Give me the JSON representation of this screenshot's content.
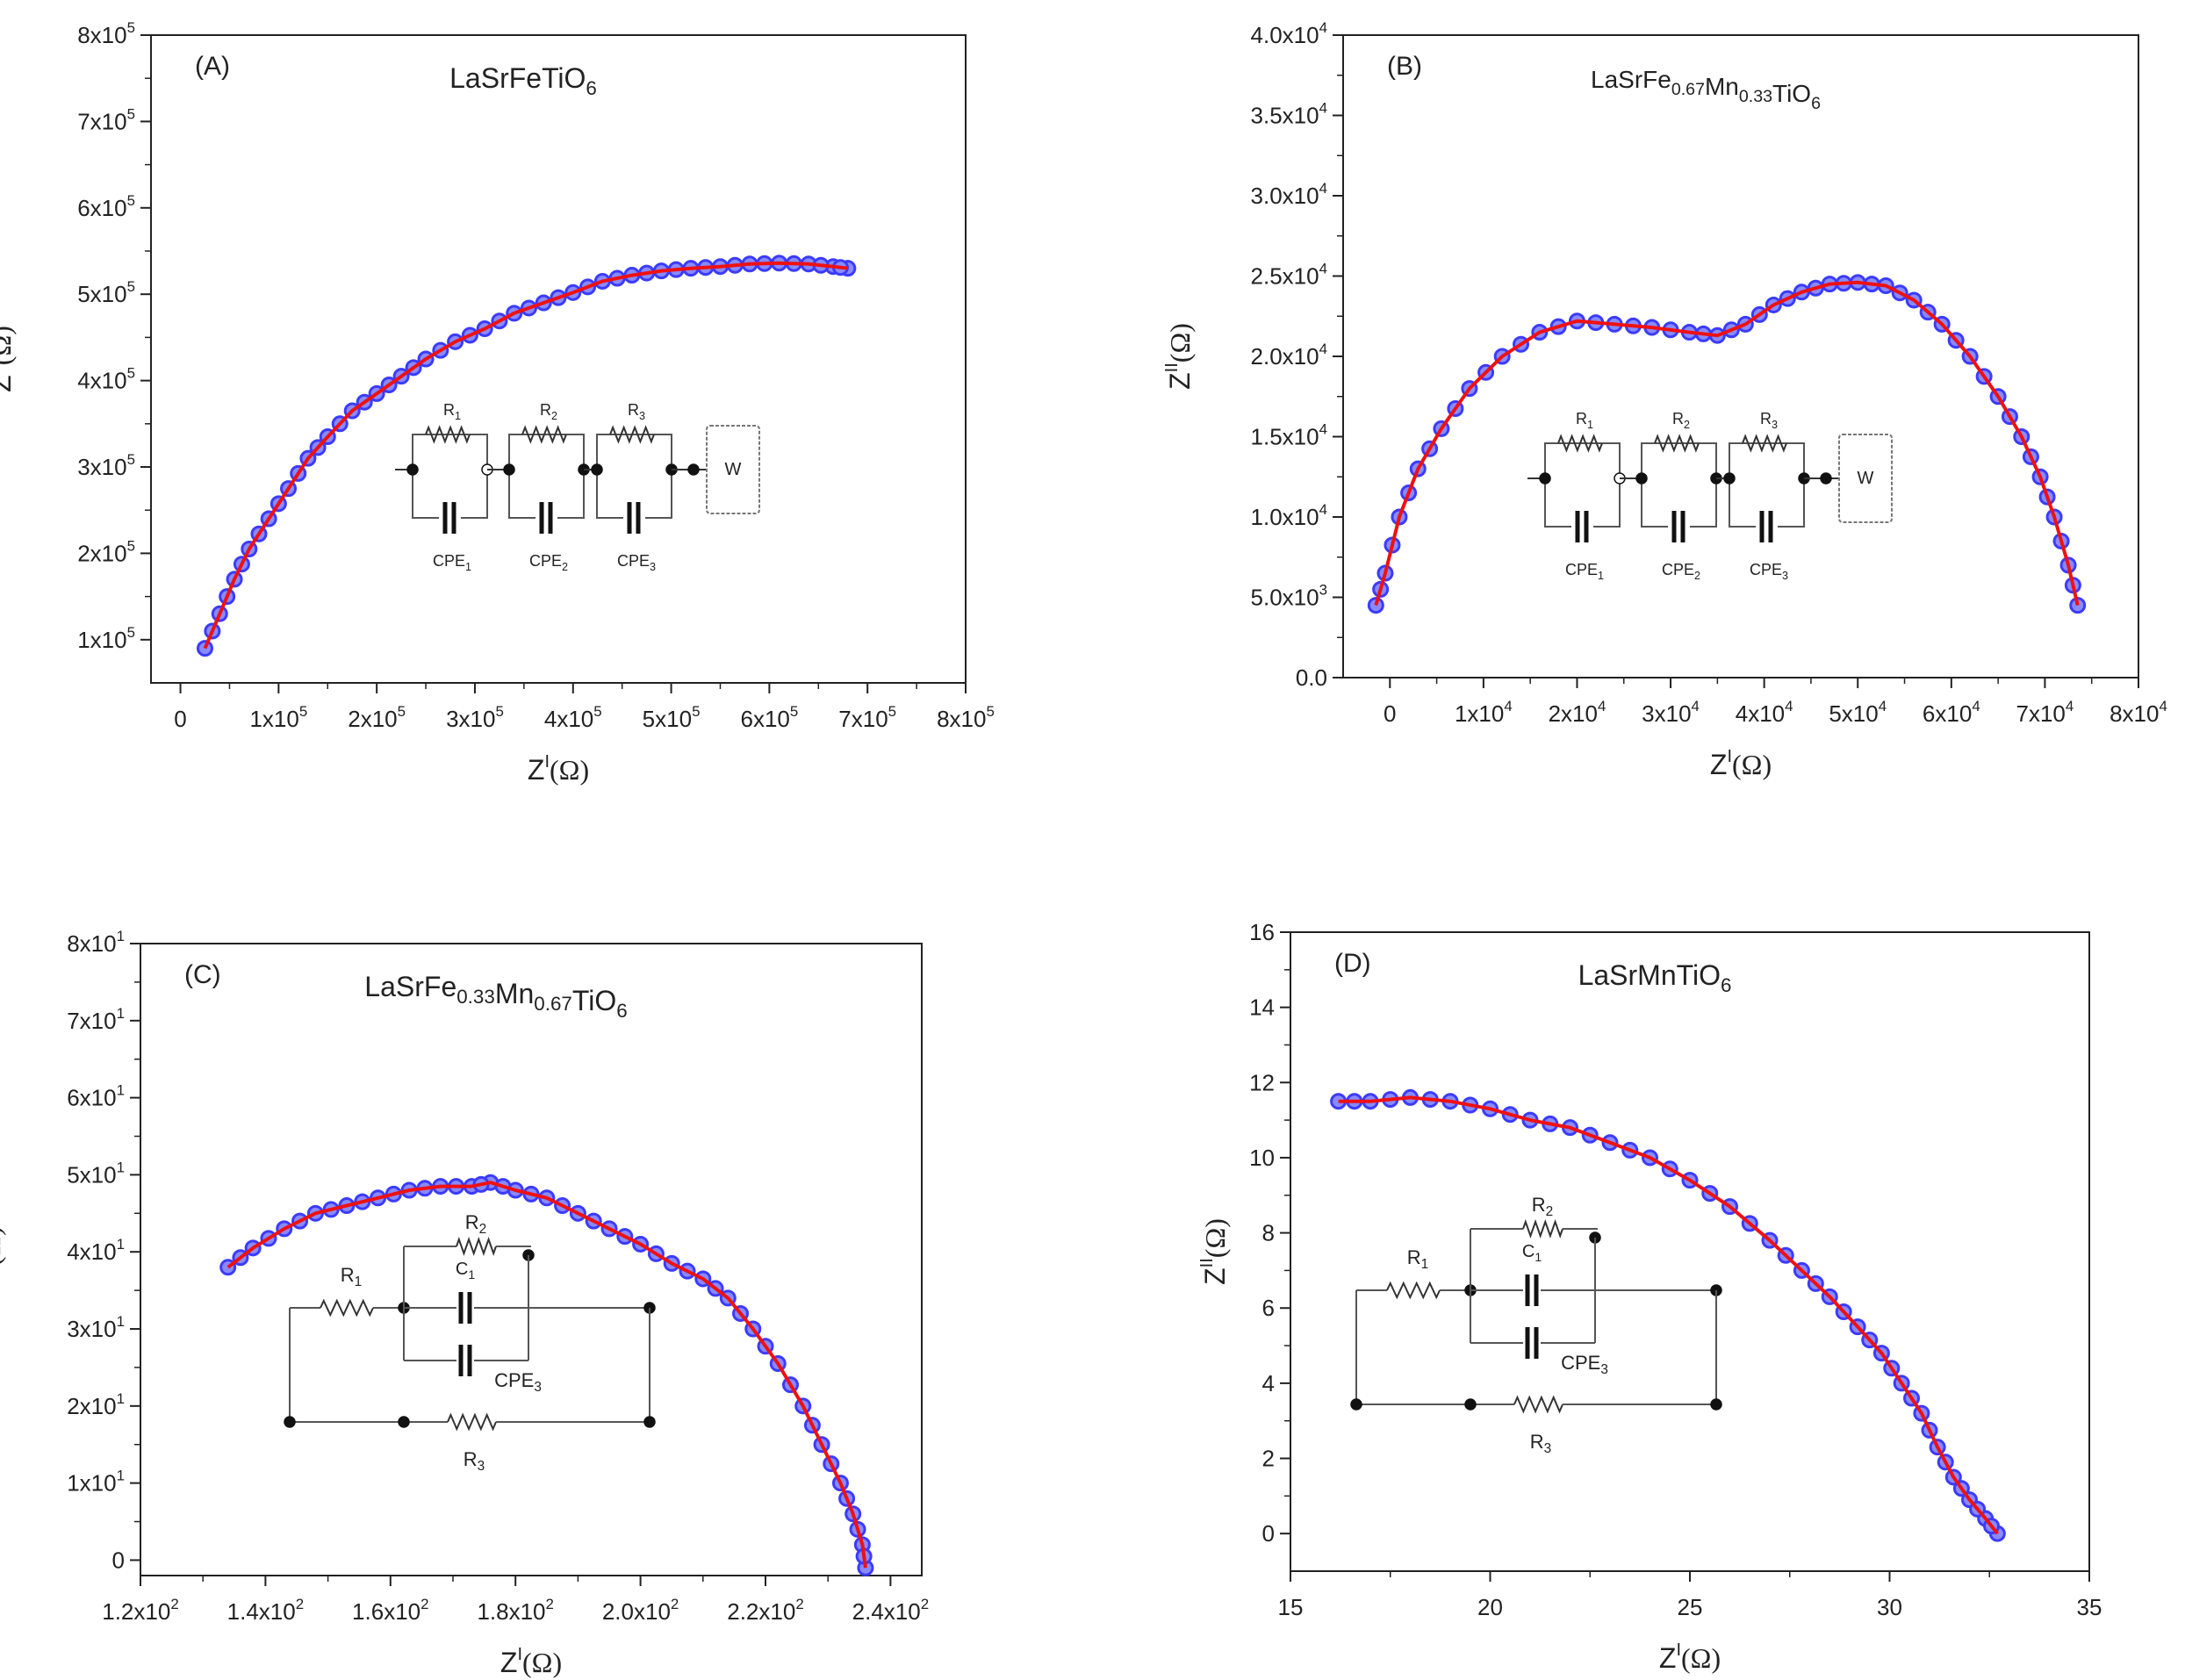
{
  "chart_data": [
    {
      "type": "line",
      "panel_label": "(A)",
      "title": "LaSrFeTiO",
      "title_sub": "6",
      "title_serif": false,
      "xlabel": "Z",
      "xlabel_sup": "I",
      "xlabel_unit": "(Ω)",
      "ylabel": "Z",
      "ylabel_sup": "II",
      "ylabel_unit": "(Ω)",
      "xlim": [
        -30000,
        800000
      ],
      "ylim": [
        50000,
        800000
      ],
      "xticks": [
        0,
        100000,
        200000,
        300000,
        400000,
        500000,
        600000,
        700000,
        800000
      ],
      "xtick_labels": [
        [
          "0",
          ""
        ],
        [
          "1x10",
          "5"
        ],
        [
          "2x10",
          "5"
        ],
        [
          "3x10",
          "5"
        ],
        [
          "4x10",
          "5"
        ],
        [
          "5x10",
          "5"
        ],
        [
          "6x10",
          "5"
        ],
        [
          "7x10",
          "5"
        ],
        [
          "8x10",
          "5"
        ]
      ],
      "yticks": [
        100000,
        200000,
        300000,
        400000,
        500000,
        600000,
        700000,
        800000
      ],
      "ytick_labels": [
        [
          "1x10",
          "5"
        ],
        [
          "2x10",
          "5"
        ],
        [
          "3x10",
          "5"
        ],
        [
          "4x10",
          "5"
        ],
        [
          "5x10",
          "5"
        ],
        [
          "6x10",
          "5"
        ],
        [
          "7x10",
          "5"
        ],
        [
          "8x10",
          "5"
        ]
      ],
      "series": [
        {
          "style": "markers",
          "color": "#3b3bff",
          "x": [
            25000,
            40000,
            55000,
            70000,
            90000,
            110000,
            130000,
            150000,
            175000,
            200000,
            225000,
            250000,
            280000,
            310000,
            340000,
            370000,
            400000,
            430000,
            460000,
            490000,
            520000,
            550000,
            580000,
            610000,
            640000,
            665000,
            680000
          ],
          "y": [
            90000,
            130000,
            170000,
            205000,
            240000,
            275000,
            310000,
            335000,
            365000,
            385000,
            405000,
            425000,
            445000,
            460000,
            478000,
            490000,
            502000,
            515000,
            522000,
            527000,
            530000,
            532000,
            535000,
            536000,
            535000,
            532000,
            530000
          ]
        },
        {
          "style": "line",
          "color": "#ee1111",
          "x": [
            25000,
            40000,
            55000,
            70000,
            90000,
            110000,
            130000,
            150000,
            175000,
            200000,
            225000,
            250000,
            280000,
            310000,
            340000,
            370000,
            400000,
            430000,
            460000,
            490000,
            520000,
            550000,
            580000,
            610000,
            640000,
            665000,
            680000
          ],
          "y": [
            90000,
            130000,
            170000,
            205000,
            240000,
            275000,
            310000,
            335000,
            365000,
            385000,
            405000,
            425000,
            445000,
            460000,
            478000,
            490000,
            502000,
            515000,
            522000,
            527000,
            530000,
            532000,
            535000,
            536000,
            535000,
            532000,
            530000
          ]
        }
      ],
      "circuit": {
        "type": "rrw",
        "labels": [
          [
            "R",
            "1"
          ],
          [
            "R",
            "2"
          ],
          [
            "R",
            "3"
          ],
          [
            "CPE",
            "1"
          ],
          [
            "CPE",
            "2"
          ],
          [
            "CPE",
            "3"
          ],
          [
            "W",
            ""
          ]
        ]
      }
    },
    {
      "type": "line",
      "panel_label": "(B)",
      "title": "LaSrFe",
      "title_parts": [
        [
          "LaSrFe",
          ""
        ],
        [
          "",
          "0.67"
        ],
        [
          "Mn",
          ""
        ],
        [
          "",
          "0.33"
        ],
        [
          "TiO",
          ""
        ],
        [
          "",
          "6"
        ]
      ],
      "title_serif": true,
      "xlabel": "Z",
      "xlabel_sup": "I",
      "xlabel_unit": "(Ω)",
      "ylabel": "Z",
      "ylabel_sup": "II",
      "ylabel_unit": "(Ω)",
      "xlim": [
        -5000,
        80000
      ],
      "ylim": [
        0,
        40000
      ],
      "xticks": [
        0,
        10000,
        20000,
        30000,
        40000,
        50000,
        60000,
        70000,
        80000
      ],
      "xtick_labels": [
        [
          "0",
          ""
        ],
        [
          "1x10",
          "4"
        ],
        [
          "2x10",
          "4"
        ],
        [
          "3x10",
          "4"
        ],
        [
          "4x10",
          "4"
        ],
        [
          "5x10",
          "4"
        ],
        [
          "6x10",
          "4"
        ],
        [
          "7x10",
          "4"
        ],
        [
          "8x10",
          "4"
        ]
      ],
      "yticks": [
        0,
        5000,
        10000,
        15000,
        20000,
        25000,
        30000,
        35000,
        40000
      ],
      "ytick_labels": [
        [
          "0.0",
          ""
        ],
        [
          "5.0x10",
          "3"
        ],
        [
          "1.0x10",
          "4"
        ],
        [
          "1.5x10",
          "4"
        ],
        [
          "2.0x10",
          "4"
        ],
        [
          "2.5x10",
          "4"
        ],
        [
          "3.0x10",
          "4"
        ],
        [
          "3.5x10",
          "4"
        ],
        [
          "4.0x10",
          "4"
        ]
      ],
      "series": [
        {
          "style": "markers",
          "color": "#3b3bff",
          "x": [
            -1500,
            -500,
            1000,
            3000,
            5500,
            8500,
            12000,
            16000,
            20000,
            24000,
            28000,
            32000,
            35000,
            38000,
            41000,
            44000,
            47000,
            50000,
            53000,
            56000,
            59000,
            62000,
            65000,
            67500,
            69500,
            71000,
            72500,
            73500
          ],
          "y": [
            4500,
            6500,
            10000,
            13000,
            15500,
            18000,
            20000,
            21500,
            22200,
            22000,
            21800,
            21500,
            21300,
            22000,
            23200,
            24000,
            24500,
            24600,
            24400,
            23500,
            22000,
            20000,
            17500,
            15000,
            12500,
            10000,
            7000,
            4500
          ]
        },
        {
          "style": "line",
          "color": "#ee1111",
          "x": [
            -1500,
            -500,
            1000,
            3000,
            5500,
            8500,
            12000,
            16000,
            20000,
            24000,
            28000,
            32000,
            35000,
            38000,
            41000,
            44000,
            47000,
            50000,
            53000,
            56000,
            59000,
            62000,
            65000,
            67500,
            69500,
            71000,
            72500,
            73500
          ],
          "y": [
            4500,
            6500,
            10000,
            13000,
            15500,
            18000,
            20000,
            21500,
            22200,
            22000,
            21800,
            21500,
            21300,
            22000,
            23200,
            24000,
            24500,
            24600,
            24400,
            23500,
            22000,
            20000,
            17500,
            15000,
            12500,
            10000,
            7000,
            4500
          ]
        }
      ],
      "circuit": {
        "type": "rrw",
        "labels": [
          [
            "R",
            "1"
          ],
          [
            "R",
            "2"
          ],
          [
            "R",
            "3"
          ],
          [
            "CPE",
            "1"
          ],
          [
            "CPE",
            "2"
          ],
          [
            "CPE",
            "3"
          ],
          [
            "W",
            ""
          ]
        ]
      }
    },
    {
      "type": "line",
      "panel_label": "(C)",
      "title": "LaSrFe",
      "title_parts": [
        [
          "LaSrFe",
          ""
        ],
        [
          "",
          "0.33"
        ],
        [
          "Mn",
          ""
        ],
        [
          "",
          "0.67"
        ],
        [
          "TiO",
          ""
        ],
        [
          "",
          "6"
        ]
      ],
      "title_serif": false,
      "xlabel": "Z",
      "xlabel_sup": "I",
      "xlabel_unit": "(Ω)",
      "ylabel": "Z",
      "ylabel_sup": "II",
      "ylabel_unit": "(Ω)",
      "xlim": [
        120,
        245
      ],
      "ylim": [
        -2,
        80
      ],
      "xticks": [
        120,
        140,
        160,
        180,
        200,
        220,
        240
      ],
      "xtick_labels": [
        [
          "1.2x10",
          "2"
        ],
        [
          "1.4x10",
          "2"
        ],
        [
          "1.6x10",
          "2"
        ],
        [
          "1.8x10",
          "2"
        ],
        [
          "2.0x10",
          "2"
        ],
        [
          "2.2x10",
          "2"
        ],
        [
          "2.4x10",
          "2"
        ]
      ],
      "yticks": [
        0,
        10,
        20,
        30,
        40,
        50,
        60,
        70,
        80
      ],
      "ytick_labels": [
        [
          "0",
          ""
        ],
        [
          "1x10",
          "1"
        ],
        [
          "2x10",
          "1"
        ],
        [
          "3x10",
          "1"
        ],
        [
          "4x10",
          "1"
        ],
        [
          "5x10",
          "1"
        ],
        [
          "6x10",
          "1"
        ],
        [
          "7x10",
          "1"
        ],
        [
          "8x10",
          "1"
        ]
      ],
      "series": [
        {
          "style": "markers",
          "color": "#3b3bff",
          "x": [
            134,
            138,
            143,
            148,
            153,
            158,
            163,
            168,
            173,
            176,
            180,
            185,
            190,
            195,
            200,
            205,
            210,
            214,
            218,
            222,
            226,
            229,
            232,
            234,
            235.5,
            236
          ],
          "y": [
            38,
            40.5,
            43,
            45,
            46,
            47,
            48,
            48.5,
            48.5,
            49,
            48,
            47,
            45,
            43,
            41,
            38.5,
            36.5,
            34,
            30,
            25.5,
            20,
            15,
            10,
            6,
            2,
            -1
          ]
        },
        {
          "style": "line",
          "color": "#ee1111",
          "x": [
            134,
            138,
            143,
            148,
            153,
            158,
            163,
            168,
            173,
            176,
            180,
            185,
            190,
            195,
            200,
            205,
            210,
            214,
            218,
            222,
            226,
            229,
            232,
            234,
            235.5,
            236
          ],
          "y": [
            38,
            40.5,
            43,
            45,
            46,
            47,
            48,
            48.5,
            48.5,
            49,
            48,
            47,
            45,
            43,
            41,
            38.5,
            36.5,
            34,
            30,
            25.5,
            20,
            15,
            10,
            6,
            2,
            -1
          ]
        }
      ],
      "circuit": {
        "type": "rcr",
        "labels": [
          [
            "R",
            "1"
          ],
          [
            "R",
            "2"
          ],
          [
            "C",
            "1"
          ],
          [
            "CPE",
            "3"
          ],
          [
            "R",
            "3"
          ]
        ]
      }
    },
    {
      "type": "line",
      "panel_label": "(D)",
      "title": "LaSrMnTiO",
      "title_sub": "6",
      "title_serif": false,
      "xlabel": "Z",
      "xlabel_sup": "I",
      "xlabel_unit": "(Ω)",
      "ylabel": "Z",
      "ylabel_sup": "II",
      "ylabel_unit": "(Ω)",
      "xlim": [
        15,
        35
      ],
      "ylim": [
        -1,
        16
      ],
      "xticks": [
        15,
        20,
        25,
        30,
        35
      ],
      "xtick_labels": [
        [
          "15",
          ""
        ],
        [
          "20",
          ""
        ],
        [
          "25",
          ""
        ],
        [
          "30",
          ""
        ],
        [
          "35",
          ""
        ]
      ],
      "yticks": [
        0,
        2,
        4,
        6,
        8,
        10,
        12,
        14,
        16
      ],
      "ytick_labels": [
        [
          "0",
          ""
        ],
        [
          "2",
          ""
        ],
        [
          "4",
          ""
        ],
        [
          "6",
          ""
        ],
        [
          "8",
          ""
        ],
        [
          "10",
          ""
        ],
        [
          "12",
          ""
        ],
        [
          "14",
          ""
        ],
        [
          "16",
          ""
        ]
      ],
      "series": [
        {
          "style": "markers",
          "color": "#3b3bff",
          "x": [
            16.2,
            17,
            18,
            19,
            20,
            21,
            22,
            23,
            24,
            25,
            26,
            27,
            27.8,
            28.5,
            29.2,
            29.8,
            30.3,
            30.8,
            31.2,
            31.6,
            32,
            32.4,
            32.7
          ],
          "y": [
            11.5,
            11.5,
            11.6,
            11.5,
            11.3,
            11.0,
            10.8,
            10.4,
            10.0,
            9.4,
            8.7,
            7.8,
            7.0,
            6.3,
            5.5,
            4.8,
            4.0,
            3.2,
            2.3,
            1.5,
            0.9,
            0.4,
            0.0
          ]
        },
        {
          "style": "line",
          "color": "#ee1111",
          "x": [
            16.2,
            17,
            18,
            19,
            20,
            21,
            22,
            23,
            24,
            25,
            26,
            27,
            27.8,
            28.5,
            29.2,
            29.8,
            30.3,
            30.8,
            31.2,
            31.6,
            32,
            32.4,
            32.7
          ],
          "y": [
            11.5,
            11.5,
            11.6,
            11.5,
            11.3,
            11.0,
            10.8,
            10.4,
            10.0,
            9.4,
            8.7,
            7.8,
            7.0,
            6.3,
            5.5,
            4.8,
            4.0,
            3.2,
            2.3,
            1.5,
            0.9,
            0.4,
            0.0
          ]
        }
      ],
      "circuit": {
        "type": "rcr",
        "labels": [
          [
            "R",
            "1"
          ],
          [
            "R",
            "2"
          ],
          [
            "C",
            "1"
          ],
          [
            "CPE",
            "3"
          ],
          [
            "R",
            "3"
          ]
        ]
      }
    }
  ]
}
